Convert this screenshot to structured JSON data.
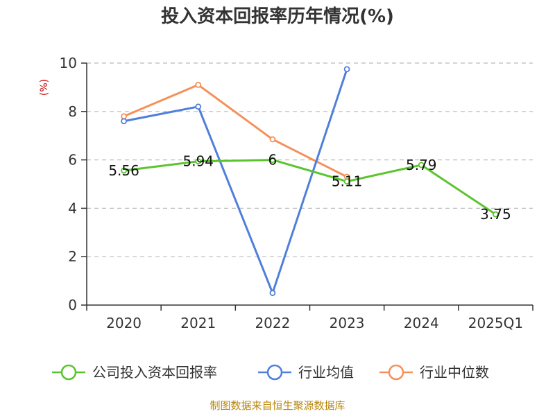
{
  "chart_data": {
    "type": "line",
    "title": "投入资本回报率历年情况(%)",
    "ylabel": "(%)",
    "xlabel": "",
    "categories": [
      "2020",
      "2021",
      "2022",
      "2023",
      "2024",
      "2025Q1"
    ],
    "ylim": [
      0,
      10
    ],
    "yticks": [
      0,
      2,
      4,
      6,
      8,
      10
    ],
    "grid": true,
    "legend_position": "bottom",
    "series": [
      {
        "name": "公司投入资本回报率",
        "color": "#5ac42d",
        "values": [
          5.56,
          5.94,
          6,
          5.11,
          5.79,
          3.75
        ],
        "labels": [
          "5.56",
          "5.94",
          "6",
          "5.11",
          "5.79",
          "3.75"
        ],
        "show_labels": true
      },
      {
        "name": "行业均值",
        "color": "#4f7fdb",
        "values": [
          7.6,
          8.2,
          0.5,
          9.75,
          null,
          null
        ],
        "show_labels": false
      },
      {
        "name": "行业中位数",
        "color": "#f5905a",
        "values": [
          7.8,
          9.1,
          6.85,
          5.3,
          null,
          null
        ],
        "show_labels": false
      }
    ]
  },
  "source": "制图数据来自恒生聚源数据库"
}
